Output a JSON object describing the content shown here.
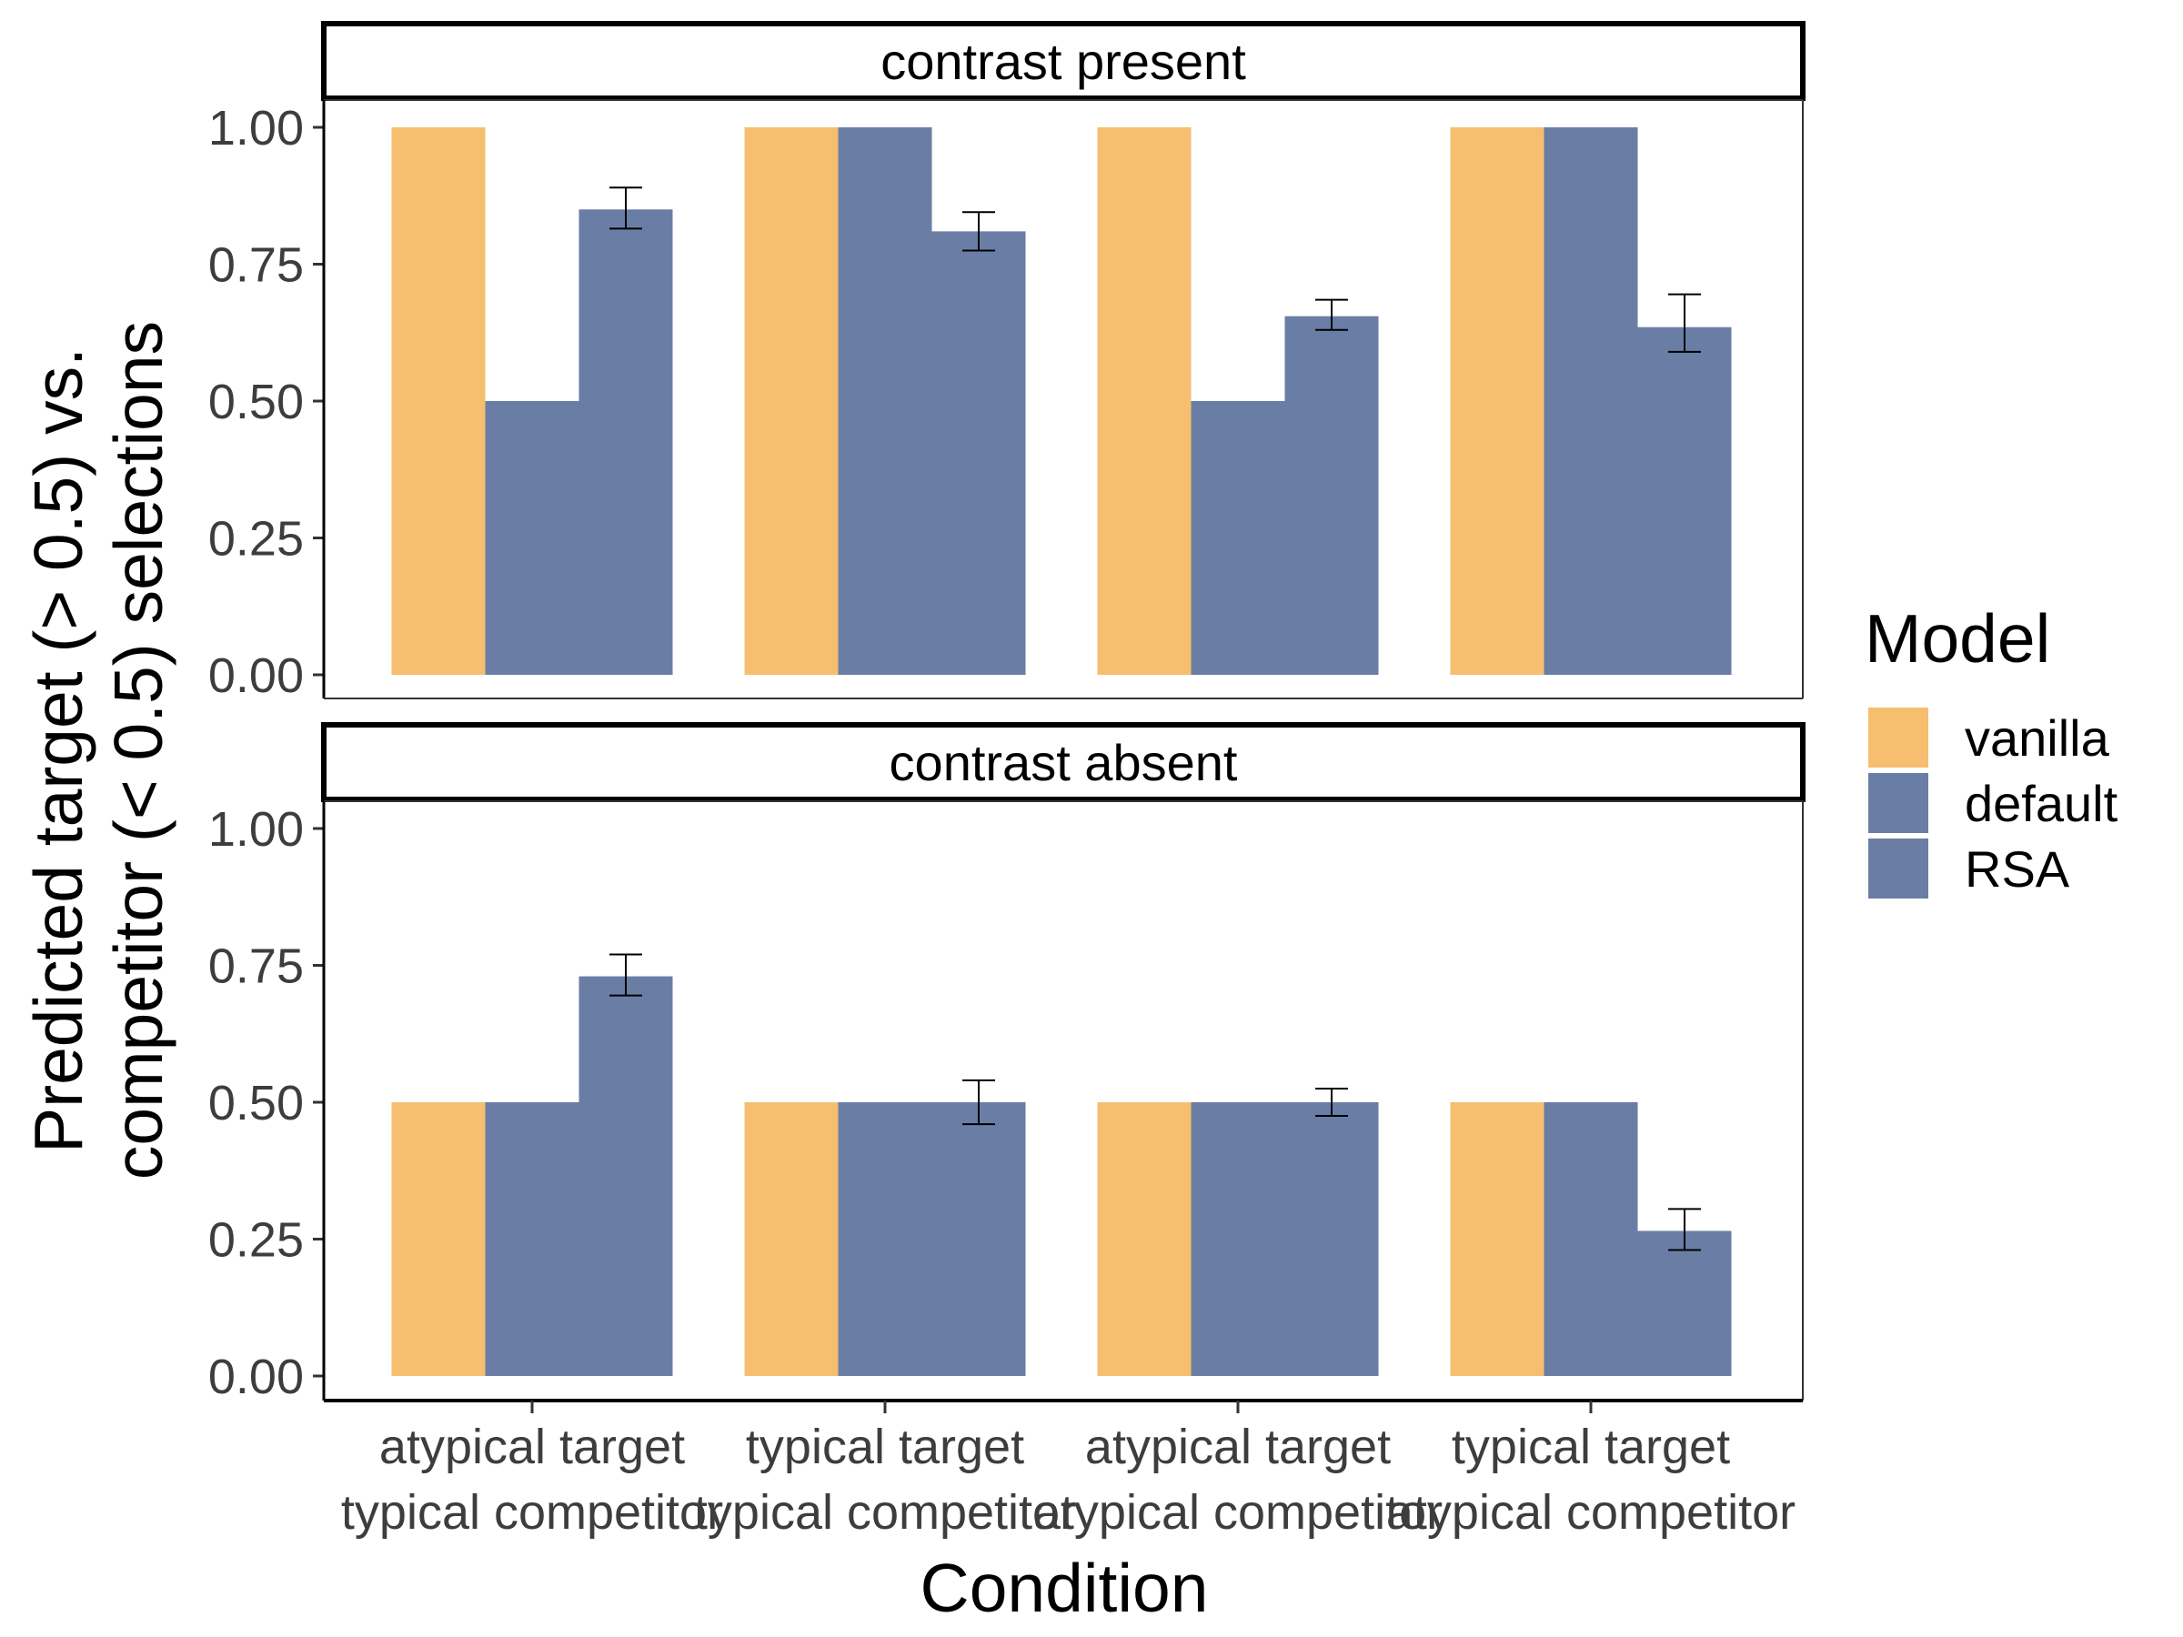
{
  "chart_data": {
    "type": "bar",
    "xlabel": "Condition",
    "ylabel_lines": [
      "Predicted target (> 0.5) vs.",
      "competitor (< 0.5) selections"
    ],
    "ylim": [
      0,
      1.05
    ],
    "yticks": [
      "0.00",
      "0.25",
      "0.50",
      "0.75",
      "1.00"
    ],
    "ytick_values": [
      0,
      0.25,
      0.5,
      0.75,
      1.0
    ],
    "categories": [
      [
        "atypical target",
        "typical competitor"
      ],
      [
        "typical target",
        "typical competitor"
      ],
      [
        "atypical target",
        "atypical competitor"
      ],
      [
        "typical target",
        "atypical competitor"
      ]
    ],
    "legend": {
      "title": "Model",
      "placement": "right",
      "entries": [
        {
          "name": "vanilla",
          "color": "#F6BE6F"
        },
        {
          "name": "default",
          "color": "#6A7EA5"
        },
        {
          "name": "RSA",
          "color": "#6A7EA5"
        }
      ]
    },
    "grid": false,
    "panels": [
      {
        "strip": "contrast present",
        "series": [
          {
            "name": "vanilla",
            "values": [
              1.0,
              1.0,
              1.0,
              1.0
            ]
          },
          {
            "name": "default",
            "values": [
              0.5,
              1.0,
              0.5,
              1.0
            ]
          },
          {
            "name": "RSA",
            "values": [
              0.85,
              0.81,
              0.655,
              0.635
            ],
            "err_low": [
              0.815,
              0.775,
              0.63,
              0.59
            ],
            "err_high": [
              0.89,
              0.845,
              0.685,
              0.695
            ]
          }
        ]
      },
      {
        "strip": "contrast absent",
        "series": [
          {
            "name": "vanilla",
            "values": [
              0.5,
              0.5,
              0.5,
              0.5
            ]
          },
          {
            "name": "default",
            "values": [
              0.5,
              0.5,
              0.5,
              0.5
            ]
          },
          {
            "name": "RSA",
            "values": [
              0.73,
              0.5,
              0.5,
              0.265
            ],
            "err_low": [
              0.695,
              0.46,
              0.475,
              0.23
            ],
            "err_high": [
              0.77,
              0.54,
              0.525,
              0.305
            ]
          }
        ]
      }
    ]
  }
}
